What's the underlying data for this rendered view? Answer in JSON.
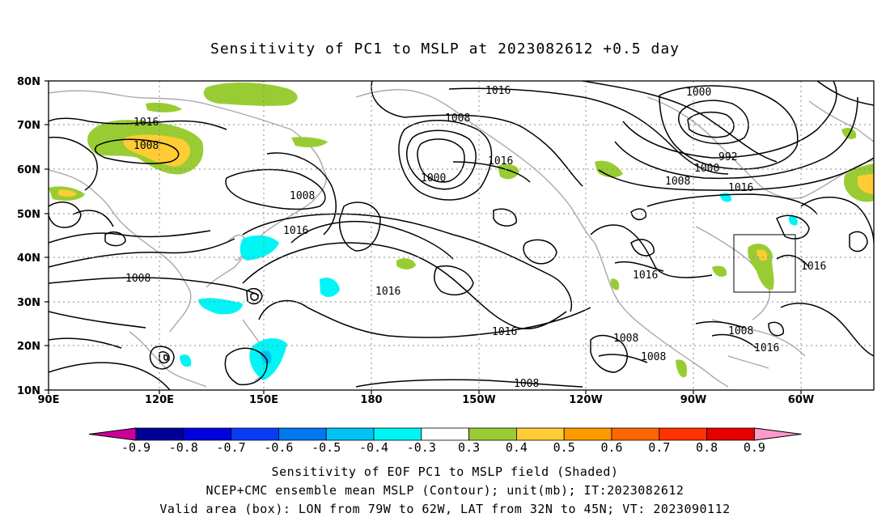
{
  "title": "Sensitivity of PC1 to MSLP at 2023082612 +0.5 day",
  "lat_ticks": [
    "80N",
    "70N",
    "60N",
    "50N",
    "40N",
    "30N",
    "20N",
    "10N"
  ],
  "lon_ticks": [
    "90E",
    "120E",
    "150E",
    "180",
    "150W",
    "120W",
    "90W",
    "60W"
  ],
  "contour_labels": [
    "1016",
    "1000",
    "1008",
    "1016",
    "1008",
    "1016",
    "992",
    "1000",
    "1008",
    "1016",
    "1000",
    "1016",
    "1008",
    "1016",
    "1016",
    "1016",
    "1016",
    "1008",
    "1008",
    "1008",
    "1008",
    "1008",
    "1016"
  ],
  "colorbar": {
    "ticks": [
      "-0.9",
      "-0.8",
      "-0.7",
      "-0.6",
      "-0.5",
      "-0.4",
      "-0.3",
      "0.3",
      "0.4",
      "0.5",
      "0.6",
      "0.7",
      "0.8",
      "0.9"
    ],
    "colors": [
      "#000099",
      "#0000e0",
      "#0a3cf5",
      "#0078f0",
      "#00c2f5",
      "#00f5f5",
      "#ffffff",
      "#99cc33",
      "#ffcc33",
      "#ff9900",
      "#ff6600",
      "#ff3300",
      "#e60000"
    ],
    "low_end": "#cc0099",
    "high_end": "#ff99cc"
  },
  "footer": [
    "Sensitivity of EOF PC1 to MSLP field (Shaded)",
    "NCEP+CMC ensemble mean MSLP (Contour); unit(mb); IT:2023082612",
    "Valid area (box): LON from 79W to 62W, LAT from 32N to 45N; VT: 2023090112"
  ],
  "map_colors": {
    "contour": "#000000",
    "coast": "#a8a8a8",
    "grid": "#888888",
    "shade_green": "#99cc33",
    "shade_yellow": "#ffcc33",
    "shade_cyan": "#00f5f5",
    "shade_blue": "#00c2f5"
  }
}
